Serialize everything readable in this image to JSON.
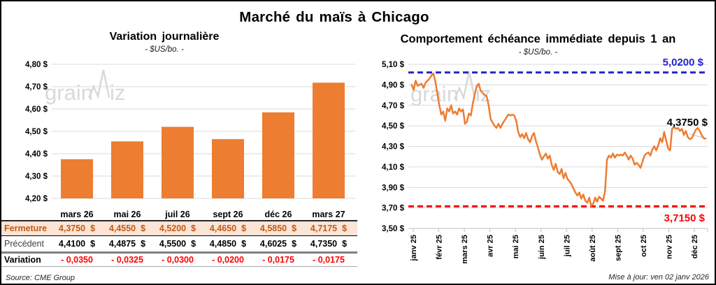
{
  "page": {
    "title": "Marché du maïs à Chicago",
    "source_note": "Source: CME Group",
    "update_note": "Mise à jour: ven 02 janv 2026",
    "watermark_left": "grain",
    "watermark_right": "iz"
  },
  "colors": {
    "accent_orange": "#ED7D31",
    "high_blue": "#2424CC",
    "low_red": "#FF0000",
    "fermeture_bg": "#FCE4D6",
    "fermeture_text": "#C55A11",
    "grid": "#D9D9D9",
    "axis": "#BFBFBF",
    "watermark_gray": "#D9D9D9"
  },
  "chart_data": [
    {
      "type": "bar",
      "title": "Variation journalière",
      "subtitle": "- $US/bo. -",
      "categories": [
        "mars 26",
        "mai 26",
        "juil 26",
        "sept 26",
        "déc 26",
        "mars 27"
      ],
      "values": [
        4.375,
        4.455,
        4.52,
        4.465,
        4.585,
        4.7175
      ],
      "ylim": [
        4.2,
        4.8
      ],
      "ytick_step": 0.1,
      "yticks": [
        "4,20 $",
        "4,30 $",
        "4,40 $",
        "4,50 $",
        "4,60 $",
        "4,70 $",
        "4,80 $"
      ],
      "bar_color": "#ED7D31",
      "grid": true,
      "legend": "none"
    },
    {
      "type": "line",
      "title": "Comportement échéance immédiate depuis 1 an",
      "subtitle": "- $US/bo. -",
      "x_categories": [
        "janv 25",
        "févr 25",
        "mars 25",
        "avr 25",
        "mai 25",
        "juin 25",
        "juil 25",
        "août 25",
        "sept 25",
        "oct 25",
        "nov 25",
        "déc 25"
      ],
      "ylim": [
        3.5,
        5.1
      ],
      "ytick_step": 0.2,
      "yticks": [
        "3,50 $",
        "3,70 $",
        "3,90 $",
        "4,10 $",
        "4,30 $",
        "4,50 $",
        "4,70 $",
        "4,90 $",
        "5,10 $"
      ],
      "line_color": "#ED7D31",
      "high_line": {
        "value": 5.02,
        "label": "5,0200 $",
        "color": "#2424CC",
        "style": "dashed"
      },
      "low_line": {
        "value": 3.715,
        "label": "3,7150 $",
        "color": "#FF0000",
        "style": "dashed"
      },
      "last_point": {
        "value": 4.375,
        "label": "4,3750 $"
      },
      "x_start_month": -0.06,
      "x_end_month": 11.44,
      "values": [
        4.9,
        4.85,
        4.94,
        4.89,
        4.9,
        4.91,
        4.87,
        4.92,
        4.94,
        4.96,
        4.99,
        5.01,
        4.93,
        4.81,
        4.7,
        4.61,
        4.64,
        4.55,
        4.67,
        4.64,
        4.7,
        4.62,
        4.64,
        4.61,
        4.67,
        4.64,
        4.66,
        4.52,
        4.54,
        4.62,
        4.6,
        4.72,
        4.81,
        4.89,
        4.91,
        4.84,
        4.82,
        4.8,
        4.79,
        4.7,
        4.57,
        4.53,
        4.5,
        4.48,
        4.52,
        4.48,
        4.52,
        4.55,
        4.58,
        4.61,
        4.6,
        4.61,
        4.6,
        4.55,
        4.44,
        4.39,
        4.42,
        4.38,
        4.43,
        4.37,
        4.34,
        4.4,
        4.43,
        4.35,
        4.29,
        4.22,
        4.17,
        4.2,
        4.23,
        4.18,
        4.21,
        4.12,
        4.07,
        4.13,
        4.05,
        4.03,
        4.08,
        3.99,
        4.04,
        3.98,
        3.96,
        3.93,
        3.89,
        3.85,
        3.82,
        3.85,
        3.79,
        3.83,
        3.77,
        3.75,
        3.8,
        3.72,
        3.74,
        3.8,
        3.76,
        3.81,
        3.79,
        3.77,
        3.86,
        4.17,
        4.21,
        4.19,
        4.23,
        4.19,
        4.22,
        4.21,
        4.22,
        4.21,
        4.24,
        4.21,
        4.17,
        4.21,
        4.18,
        4.12,
        4.14,
        4.12,
        4.09,
        4.15,
        4.21,
        4.23,
        4.24,
        4.21,
        4.27,
        4.3,
        4.26,
        4.31,
        4.38,
        4.34,
        4.44,
        4.36,
        4.28,
        4.26,
        4.47,
        4.49,
        4.47,
        4.48,
        4.45,
        4.47,
        4.41,
        4.45,
        4.39,
        4.37,
        4.38,
        4.42,
        4.46,
        4.48,
        4.45,
        4.41,
        4.38,
        4.375
      ],
      "grid": true,
      "legend": "none"
    }
  ],
  "table": {
    "columns": [
      "mars 26",
      "mai 26",
      "juil 26",
      "sept 26",
      "déc 26",
      "mars 27"
    ],
    "rows": [
      {
        "key": "fermeture",
        "label": "Fermeture",
        "values": [
          "4,3750",
          "4,4550",
          "4,5200",
          "4,4650",
          "4,5850",
          "4,7175"
        ],
        "suffix": "$"
      },
      {
        "key": "precedent",
        "label": "Précédent",
        "values": [
          "4,4100",
          "4,4875",
          "4,5500",
          "4,4850",
          "4,6025",
          "4,7350"
        ],
        "suffix": "$"
      },
      {
        "key": "variation",
        "label": "Variation",
        "values": [
          "- 0,0350",
          "- 0,0325",
          "- 0,0300",
          "- 0,0200",
          "- 0,0175",
          "- 0,0175"
        ],
        "suffix": ""
      }
    ]
  }
}
